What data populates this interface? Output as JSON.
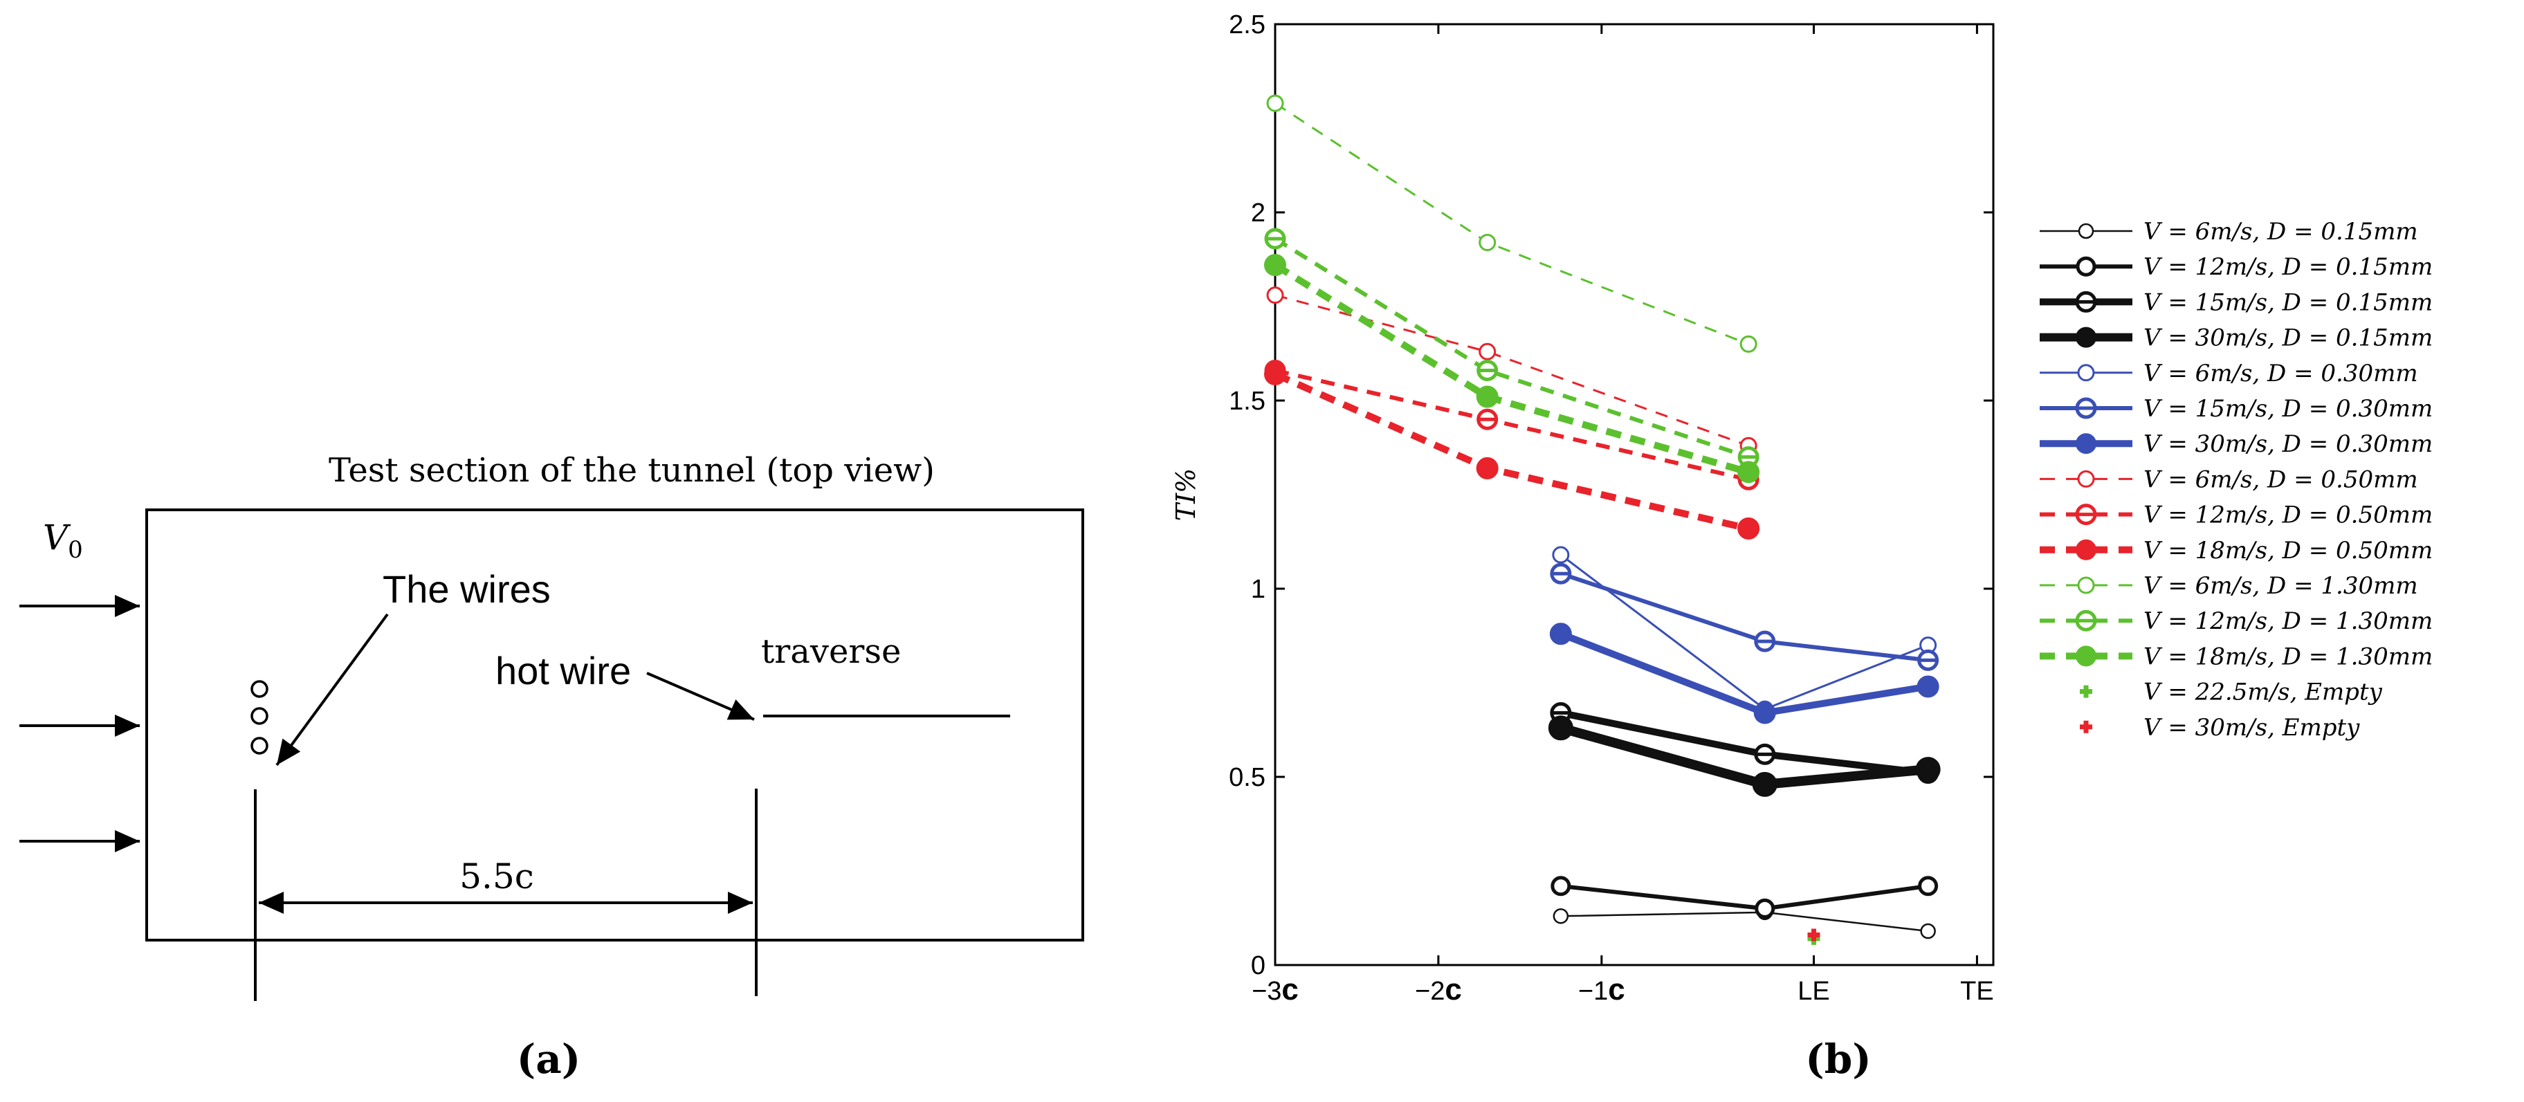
{
  "panel_a": {
    "title": "Test section of the tunnel (top view)",
    "inflow_label": "V",
    "inflow_sub": "0",
    "wires_label": "The wires",
    "hotwire_label": "hot wire",
    "traverse_label": "traverse",
    "distance_label": "5.5c",
    "caption": "(a)"
  },
  "panel_b": {
    "caption": "(b)"
  },
  "chart_data": {
    "type": "line",
    "title": "",
    "xlabel": "",
    "ylabel": "TI%",
    "xlim": [
      -3,
      1.4
    ],
    "ylim": [
      0,
      2.5
    ],
    "x_ticks": [
      {
        "value": -3,
        "label": "−3",
        "suffix": "c"
      },
      {
        "value": -2,
        "label": "−2",
        "suffix": "c"
      },
      {
        "value": -1,
        "label": "−1",
        "suffix": "c"
      },
      {
        "value": 0.3,
        "label": "LE",
        "suffix": ""
      },
      {
        "value": 1.3,
        "label": "TE",
        "suffix": ""
      }
    ],
    "y_ticks": [
      {
        "value": 0,
        "label": "0"
      },
      {
        "value": 0.5,
        "label": "0.5"
      },
      {
        "value": 1,
        "label": "1"
      },
      {
        "value": 1.5,
        "label": "1.5"
      },
      {
        "value": 2,
        "label": "2"
      },
      {
        "value": 2.5,
        "label": "2.5"
      }
    ],
    "series": [
      {
        "name": "V = 6m/s, D = 0.15mm",
        "color": "#111111",
        "width": 2.5,
        "dash": "",
        "marker": "open",
        "msize": 10,
        "x": [
          -1.25,
          0.0,
          1.0
        ],
        "y": [
          0.13,
          0.14,
          0.09
        ]
      },
      {
        "name": "V = 12m/s, D = 0.15mm",
        "color": "#111111",
        "width": 6,
        "dash": "",
        "marker": "open",
        "msize": 12,
        "x": [
          -1.25,
          0.0,
          1.0
        ],
        "y": [
          0.21,
          0.15,
          0.21
        ]
      },
      {
        "name": "V = 15m/s, D = 0.15mm",
        "color": "#111111",
        "width": 10,
        "dash": "",
        "marker": "half",
        "msize": 13,
        "x": [
          -1.25,
          0.0,
          1.0
        ],
        "y": [
          0.67,
          0.56,
          0.51
        ]
      },
      {
        "name": "V = 30m/s, D = 0.15mm",
        "color": "#111111",
        "width": 14,
        "dash": "",
        "marker": "filled",
        "msize": 17,
        "x": [
          -1.25,
          0.0,
          1.0
        ],
        "y": [
          0.63,
          0.48,
          0.52
        ]
      },
      {
        "name": "V = 6m/s, D = 0.30mm",
        "color": "#3a4fb5",
        "width": 3,
        "dash": "",
        "marker": "open",
        "msize": 11,
        "x": [
          -1.25,
          0.0,
          1.0
        ],
        "y": [
          1.09,
          0.68,
          0.85
        ]
      },
      {
        "name": "V = 15m/s, D = 0.30mm",
        "color": "#3a4fb5",
        "width": 6,
        "dash": "",
        "marker": "half",
        "msize": 13,
        "x": [
          -1.25,
          0.0,
          1.0
        ],
        "y": [
          1.04,
          0.86,
          0.81
        ]
      },
      {
        "name": "V = 30m/s, D = 0.30mm",
        "color": "#3a4fb5",
        "width": 10,
        "dash": "",
        "marker": "filled",
        "msize": 15,
        "x": [
          -1.25,
          0.0,
          1.0
        ],
        "y": [
          0.88,
          0.67,
          0.74
        ]
      },
      {
        "name": "V = 6m/s, D = 0.50mm",
        "color": "#e8232b",
        "width": 3,
        "dash": "18,14",
        "marker": "open",
        "msize": 11,
        "x": [
          -3.0,
          -1.7,
          -0.1
        ],
        "y": [
          1.78,
          1.63,
          1.38
        ]
      },
      {
        "name": "V = 12m/s, D = 0.50mm",
        "color": "#e8232b",
        "width": 6,
        "dash": "20,14",
        "marker": "half",
        "msize": 13,
        "x": [
          -3.0,
          -1.7,
          -0.1
        ],
        "y": [
          1.58,
          1.45,
          1.29
        ]
      },
      {
        "name": "V = 18m/s, D = 0.50mm",
        "color": "#e8232b",
        "width": 10,
        "dash": "22,14",
        "marker": "filled",
        "msize": 15,
        "x": [
          -3.0,
          -1.7,
          -0.1
        ],
        "y": [
          1.57,
          1.32,
          1.16
        ]
      },
      {
        "name": "V = 6m/s, D = 1.30mm",
        "color": "#5cc02e",
        "width": 3,
        "dash": "18,14",
        "marker": "open",
        "msize": 11,
        "x": [
          -3.0,
          -1.7,
          -0.1
        ],
        "y": [
          2.29,
          1.92,
          1.65
        ]
      },
      {
        "name": "V = 12m/s, D = 1.30mm",
        "color": "#5cc02e",
        "width": 6,
        "dash": "20,14",
        "marker": "half",
        "msize": 13,
        "x": [
          -3.0,
          -1.7,
          -0.1
        ],
        "y": [
          1.93,
          1.58,
          1.35
        ]
      },
      {
        "name": "V = 18m/s, D = 1.30mm",
        "color": "#5cc02e",
        "width": 10,
        "dash": "22,14",
        "marker": "filled",
        "msize": 15,
        "x": [
          -3.0,
          -1.7,
          -0.1
        ],
        "y": [
          1.86,
          1.51,
          1.31
        ]
      },
      {
        "name": "V = 22.5m/s, Empty",
        "color": "#5cc02e",
        "width": 0,
        "dash": "",
        "marker": "plus",
        "msize": 9,
        "x": [
          0.3
        ],
        "y": [
          0.07
        ]
      },
      {
        "name": "V = 30m/s, Empty",
        "color": "#e8232b",
        "width": 0,
        "dash": "",
        "marker": "plus",
        "msize": 9,
        "x": [
          0.3
        ],
        "y": [
          0.08
        ]
      }
    ],
    "legend_position": "right"
  }
}
